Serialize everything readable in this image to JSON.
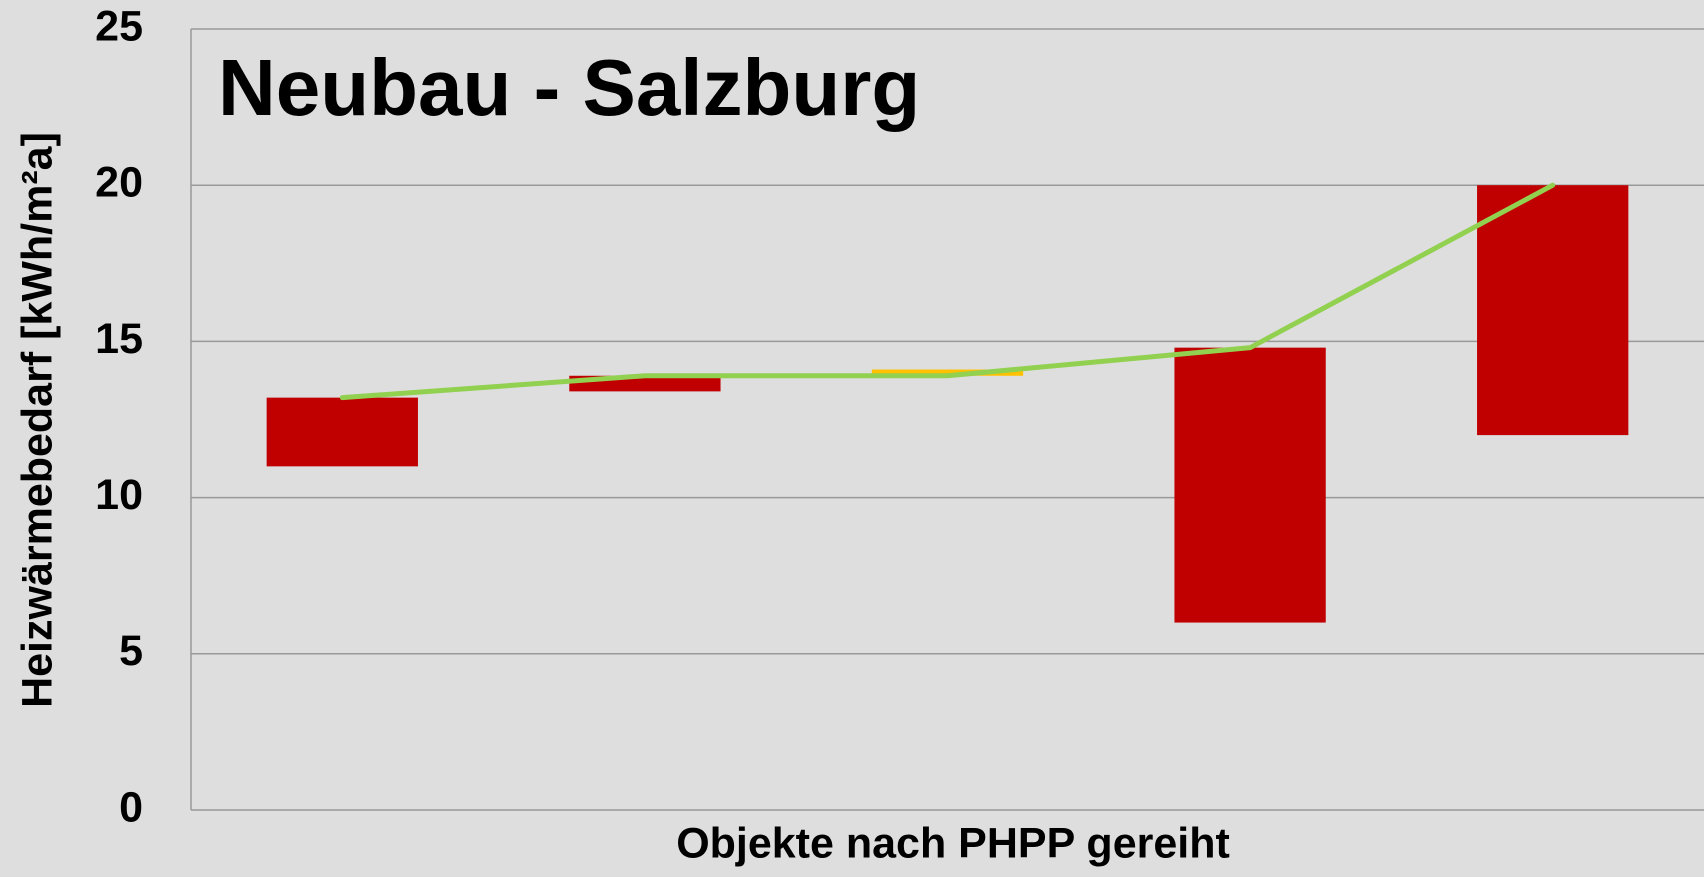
{
  "chart_data": {
    "type": "bar",
    "title": "Neubau - Salzburg",
    "y_label": "Heizwärmebedarf [kWh/m²a]",
    "x_label": "Objekte nach PHPP gereiht",
    "categories": [
      null,
      null,
      null,
      null,
      null
    ],
    "series": [
      {
        "type": "bar",
        "colors": [
          "#c00000",
          "#c00000",
          "#ffc000",
          "#c00000",
          "#c00000"
        ],
        "base": [
          11,
          13.4,
          13.9,
          6,
          12
        ],
        "values": [
          13.2,
          13.9,
          14.1,
          14.8,
          20
        ]
      },
      {
        "type": "line",
        "color": "#92d050",
        "values": [
          13.2,
          13.9,
          13.9,
          14.8,
          20
        ]
      }
    ],
    "ylim": [
      0,
      25
    ],
    "yticks": [
      0,
      5,
      10,
      15,
      20,
      25
    ],
    "grid": true
  }
}
